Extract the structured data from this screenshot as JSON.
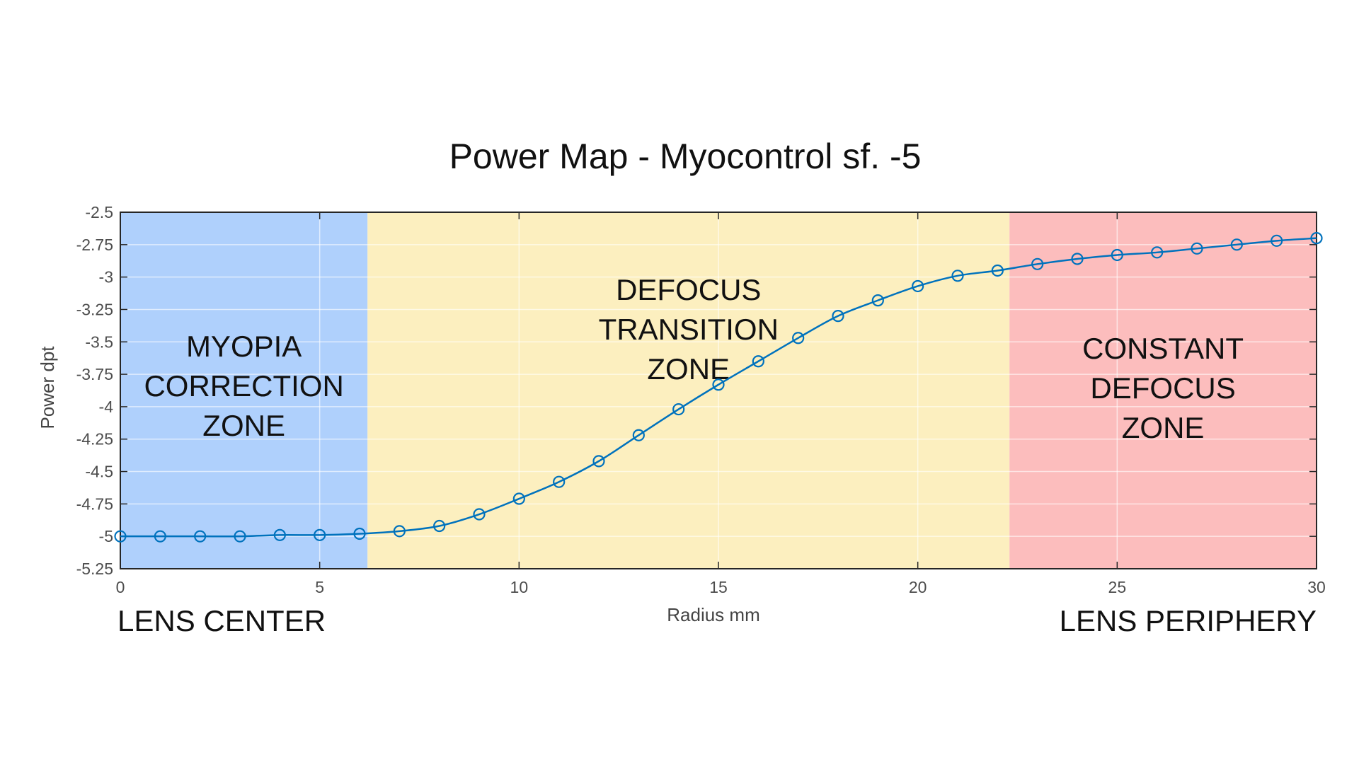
{
  "chart_data": {
    "type": "line",
    "title": "Power Map - Myocontrol sf. -5",
    "xlabel": "Radius mm",
    "ylabel": "Power dpt",
    "xlim": [
      0,
      30
    ],
    "ylim": [
      -5.25,
      -2.5
    ],
    "x_ticks": [
      0,
      5,
      10,
      15,
      20,
      25,
      30
    ],
    "y_ticks": [
      -2.5,
      -2.75,
      -3,
      -3.25,
      -3.5,
      -3.75,
      -4,
      -4.25,
      -4.5,
      -4.75,
      -5,
      -5.25
    ],
    "grid": true,
    "line_color": "#0072bd",
    "x": [
      0,
      1,
      2,
      3,
      4,
      5,
      6,
      7,
      8,
      9,
      10,
      11,
      12,
      13,
      14,
      15,
      16,
      17,
      18,
      19,
      20,
      21,
      22,
      23,
      24,
      25,
      26,
      27,
      28,
      29,
      30
    ],
    "values": [
      -5.0,
      -5.0,
      -5.0,
      -5.0,
      -4.99,
      -4.99,
      -4.98,
      -4.96,
      -4.92,
      -4.83,
      -4.71,
      -4.58,
      -4.42,
      -4.22,
      -4.02,
      -3.83,
      -3.65,
      -3.47,
      -3.3,
      -3.18,
      -3.07,
      -2.99,
      -2.95,
      -2.9,
      -2.86,
      -2.83,
      -2.81,
      -2.78,
      -2.75,
      -2.72,
      -2.7
    ],
    "zones": [
      {
        "x_from": 0,
        "x_to": 6.2,
        "color": "#afd0fc",
        "lines": [
          "MYOPIA",
          "CORRECTION",
          "ZONE"
        ]
      },
      {
        "x_from": 6.2,
        "x_to": 22.3,
        "color": "#fcefbf",
        "lines": [
          "DEFOCUS",
          "TRANSITION",
          "ZONE"
        ]
      },
      {
        "x_from": 22.3,
        "x_to": 30,
        "color": "#fcbdbd",
        "lines": [
          "CONSTANT",
          "DEFOCUS",
          "ZONE"
        ]
      }
    ],
    "annotations": {
      "left": "LENS CENTER",
      "right": "LENS PERIPHERY"
    }
  }
}
